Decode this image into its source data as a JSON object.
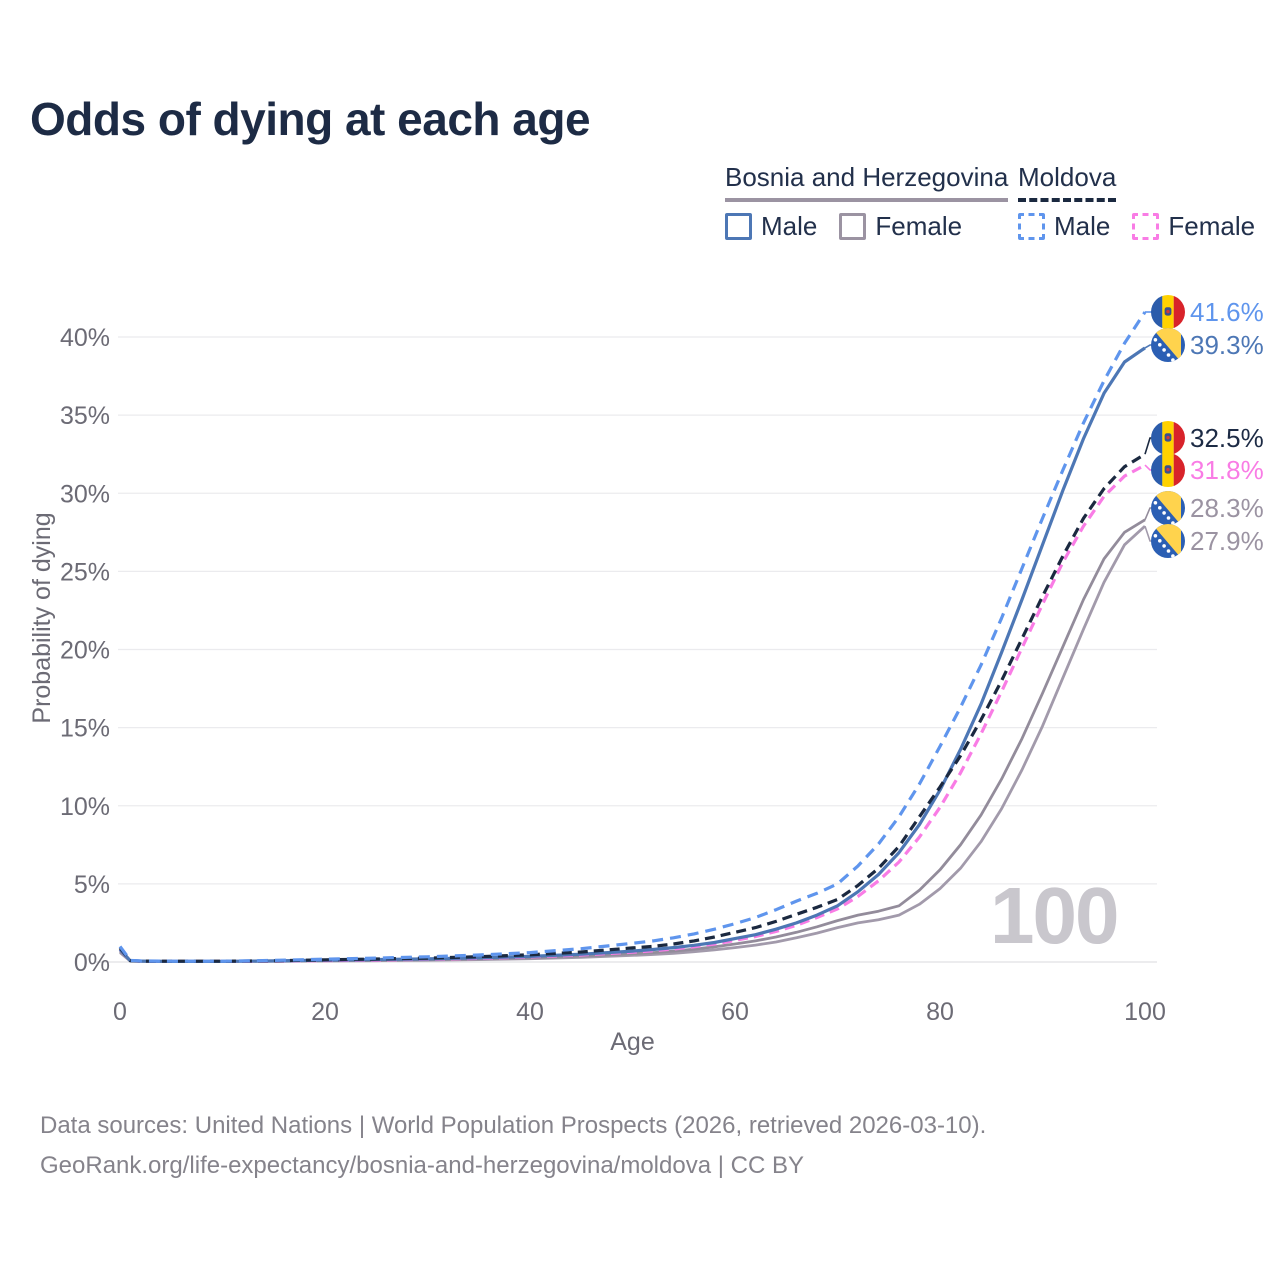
{
  "title": "Odds of dying at each age",
  "legend": {
    "groups": [
      {
        "country": "Bosnia and Herzegovina",
        "line_style": "solid",
        "underline_color": "#9b93a2",
        "items": [
          {
            "label": "Male",
            "color": "#4d77b5",
            "dashed": false
          },
          {
            "label": "Female",
            "color": "#9b93a2",
            "dashed": false
          }
        ]
      },
      {
        "country": "Moldova",
        "line_style": "dashed",
        "underline_color": "#1b2940",
        "items": [
          {
            "label": "Male",
            "color": "#5f95ed",
            "dashed": true
          },
          {
            "label": "Female",
            "color": "#f97ce5",
            "dashed": true
          }
        ]
      }
    ]
  },
  "chart_data": {
    "type": "line",
    "title": "Odds of dying at each age",
    "xlabel": "Age",
    "ylabel": "Probability of dying",
    "xlim": [
      0,
      100
    ],
    "ylim": [
      0,
      43
    ],
    "x_ticks": [
      0,
      20,
      40,
      60,
      80,
      100
    ],
    "y_ticks": [
      0,
      5,
      10,
      15,
      20,
      25,
      30,
      35,
      40
    ],
    "y_tick_suffix": "%",
    "grid": true,
    "legend_position": "top-right",
    "x": [
      0,
      1,
      2,
      5,
      10,
      15,
      20,
      25,
      30,
      35,
      40,
      45,
      50,
      52,
      54,
      56,
      58,
      60,
      62,
      64,
      66,
      68,
      70,
      72,
      74,
      76,
      78,
      80,
      82,
      84,
      86,
      88,
      90,
      92,
      94,
      96,
      98,
      100
    ],
    "series": [
      {
        "name": "Moldova Male",
        "country": "Moldova",
        "flag": "md",
        "color": "#5f95ed",
        "label_color": "#5f95ed",
        "dashed": true,
        "end_label": "41.6%",
        "values": [
          1.0,
          0.1,
          0.07,
          0.05,
          0.05,
          0.1,
          0.18,
          0.25,
          0.33,
          0.45,
          0.6,
          0.85,
          1.2,
          1.35,
          1.55,
          1.8,
          2.1,
          2.45,
          2.85,
          3.35,
          3.9,
          4.4,
          5.0,
          6.15,
          7.55,
          9.3,
          11.4,
          13.8,
          16.3,
          19.0,
          22.0,
          25.2,
          28.4,
          31.5,
          34.5,
          37.2,
          39.6,
          41.6
        ]
      },
      {
        "name": "Bosnia and Herzegovina Male",
        "country": "Bosnia and Herzegovina",
        "flag": "ba",
        "color": "#4d77b5",
        "label_color": "#4d77b5",
        "dashed": false,
        "end_label": "39.3%",
        "values": [
          0.8,
          0.08,
          0.06,
          0.04,
          0.04,
          0.07,
          0.12,
          0.16,
          0.2,
          0.27,
          0.36,
          0.5,
          0.7,
          0.8,
          0.92,
          1.07,
          1.25,
          1.5,
          1.75,
          2.1,
          2.5,
          3.0,
          3.6,
          4.5,
          5.6,
          7.0,
          8.8,
          11.0,
          13.6,
          16.5,
          19.8,
          23.2,
          26.7,
          30.2,
          33.5,
          36.4,
          38.4,
          39.3
        ]
      },
      {
        "name": "Moldova Both sexes",
        "country": "Moldova",
        "flag": "md",
        "color": "#1b2940",
        "label_color": "#1d2b45",
        "dashed": true,
        "end_label": "32.5%",
        "values": [
          0.9,
          0.09,
          0.06,
          0.05,
          0.05,
          0.08,
          0.14,
          0.19,
          0.25,
          0.34,
          0.46,
          0.64,
          0.9,
          1.0,
          1.15,
          1.35,
          1.6,
          1.9,
          2.2,
          2.6,
          3.05,
          3.5,
          4.0,
          4.9,
          6.0,
          7.4,
          9.3,
          11.2,
          13.2,
          15.5,
          18.0,
          20.7,
          23.4,
          26.0,
          28.4,
          30.3,
          31.7,
          32.5
        ]
      },
      {
        "name": "Moldova Female",
        "country": "Moldova",
        "flag": "md",
        "color": "#f97ce5",
        "label_color": "#f97ce5",
        "dashed": true,
        "end_label": "31.8%",
        "values": [
          0.8,
          0.08,
          0.05,
          0.04,
          0.04,
          0.06,
          0.09,
          0.12,
          0.17,
          0.23,
          0.32,
          0.45,
          0.63,
          0.72,
          0.83,
          0.97,
          1.15,
          1.38,
          1.63,
          1.95,
          2.35,
          2.85,
          3.4,
          4.2,
          5.2,
          6.4,
          8.0,
          9.9,
          12.1,
          14.6,
          17.3,
          20.1,
          22.9,
          25.6,
          27.9,
          29.8,
          31.1,
          31.8
        ]
      },
      {
        "name": "Bosnia and Herzegovina Both sexes",
        "country": "Bosnia and Herzegovina",
        "flag": "ba",
        "color": "#938c9b",
        "label_color": "#9b93a2",
        "dashed": false,
        "end_label": "28.3%",
        "values": [
          0.7,
          0.07,
          0.05,
          0.035,
          0.035,
          0.055,
          0.085,
          0.11,
          0.15,
          0.2,
          0.27,
          0.38,
          0.53,
          0.6,
          0.7,
          0.82,
          0.97,
          1.15,
          1.35,
          1.6,
          1.9,
          2.25,
          2.65,
          3.0,
          3.25,
          3.6,
          4.6,
          5.9,
          7.5,
          9.4,
          11.7,
          14.3,
          17.2,
          20.2,
          23.2,
          25.8,
          27.5,
          28.3
        ]
      },
      {
        "name": "Bosnia and Herzegovina Female",
        "country": "Bosnia and Herzegovina",
        "flag": "ba",
        "color": "#a29aab",
        "label_color": "#9b93a2",
        "dashed": false,
        "end_label": "27.9%",
        "values": [
          0.6,
          0.06,
          0.04,
          0.03,
          0.03,
          0.045,
          0.065,
          0.085,
          0.115,
          0.155,
          0.21,
          0.3,
          0.42,
          0.48,
          0.56,
          0.66,
          0.78,
          0.92,
          1.08,
          1.28,
          1.55,
          1.85,
          2.2,
          2.5,
          2.7,
          3.0,
          3.7,
          4.7,
          6.0,
          7.7,
          9.8,
          12.3,
          15.1,
          18.2,
          21.3,
          24.3,
          26.7,
          27.9
        ]
      }
    ]
  },
  "watermark": "100",
  "footer": {
    "line1": "Data sources: United Nations | World Population Prospects (2026, retrieved 2026-03-10).",
    "line2": "GeoRank.org/life-expectancy/bosnia-and-herzegovina/moldova | CC BY"
  }
}
